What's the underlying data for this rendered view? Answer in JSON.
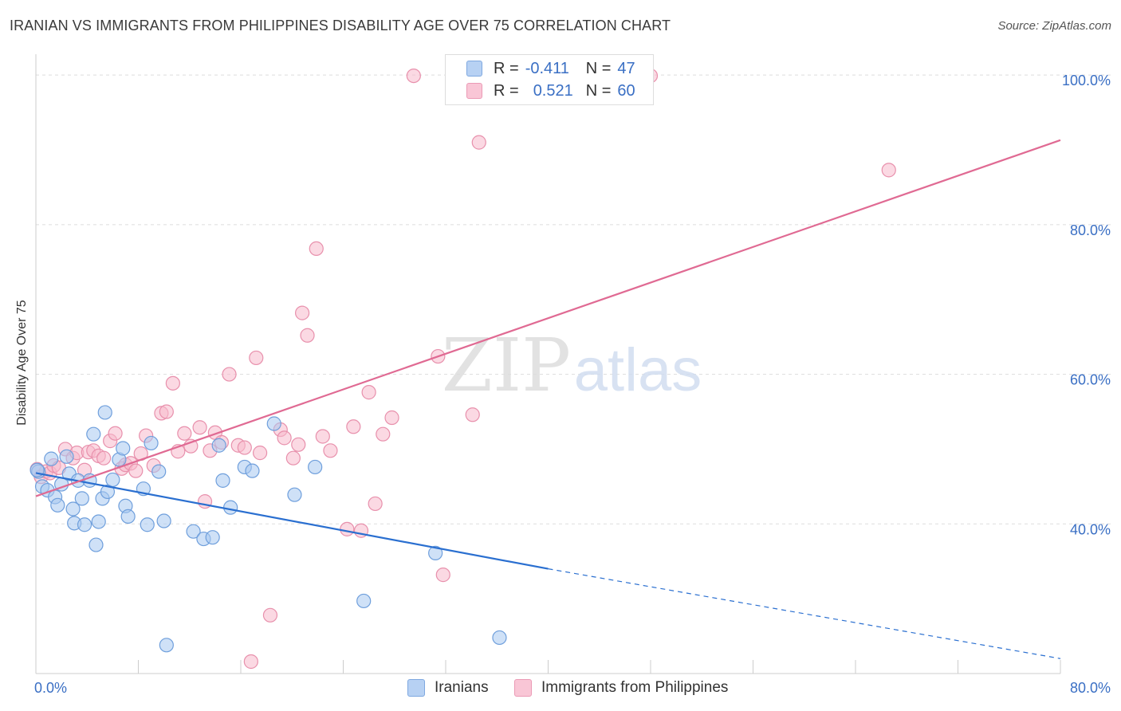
{
  "title": "IRANIAN VS IMMIGRANTS FROM PHILIPPINES DISABILITY AGE OVER 75 CORRELATION CHART",
  "source": "Source: ZipAtlas.com",
  "watermark": {
    "zip": "ZIP",
    "atlas": "atlas"
  },
  "legend": {
    "r_label": "R =",
    "n_label": "N =",
    "series": [
      {
        "r": "-0.411",
        "n": "47"
      },
      {
        "r": "0.521",
        "n": "60"
      }
    ]
  },
  "bottom_legend": [
    "Iranians",
    "Immigrants from Philippines"
  ],
  "colors": {
    "blue_fill": "#a8c8f0",
    "blue_stroke": "#6f9fdc",
    "blue_line": "#2a6fd0",
    "pink_fill": "#f7b9cc",
    "pink_stroke": "#e890ac",
    "pink_line": "#e06a93",
    "tick_text": "#3a6fc4",
    "grid": "#dddddd"
  },
  "chart_data": {
    "type": "scatter",
    "title": "IRANIAN VS IMMIGRANTS FROM PHILIPPINES DISABILITY AGE OVER 75 CORRELATION CHART",
    "xlabel": "",
    "ylabel": "Disability Age Over 75",
    "xlim": [
      0,
      80
    ],
    "ylim": [
      20,
      103
    ],
    "x_tick_labels": [
      "0.0%",
      "80.0%"
    ],
    "y_ticks": [
      40,
      60,
      80,
      100
    ],
    "y_tick_labels": [
      "40.0%",
      "60.0%",
      "80.0%",
      "100.0%"
    ],
    "grid": true,
    "legend_position": "top-center",
    "series": [
      {
        "name": "Iranians",
        "r": -0.411,
        "n": 47,
        "trend": {
          "x": [
            0,
            40
          ],
          "y": [
            46.8,
            34.0
          ],
          "dashed_to": [
            80,
            22.0
          ]
        },
        "points": [
          [
            0.2,
            47.0
          ],
          [
            0.5,
            45.0
          ],
          [
            0.9,
            44.5
          ],
          [
            1.2,
            48.7
          ],
          [
            1.5,
            43.6
          ],
          [
            1.7,
            42.5
          ],
          [
            2.0,
            45.3
          ],
          [
            2.4,
            49.0
          ],
          [
            2.6,
            46.7
          ],
          [
            2.9,
            42.0
          ],
          [
            3.0,
            40.1
          ],
          [
            3.3,
            45.8
          ],
          [
            3.6,
            43.4
          ],
          [
            3.8,
            39.9
          ],
          [
            4.2,
            45.8
          ],
          [
            4.5,
            52.0
          ],
          [
            4.7,
            37.2
          ],
          [
            4.9,
            40.3
          ],
          [
            5.2,
            43.4
          ],
          [
            5.4,
            54.9
          ],
          [
            5.6,
            44.3
          ],
          [
            6.0,
            45.9
          ],
          [
            6.5,
            48.6
          ],
          [
            6.8,
            50.1
          ],
          [
            7.0,
            42.4
          ],
          [
            7.2,
            41.0
          ],
          [
            8.4,
            44.7
          ],
          [
            8.7,
            39.9
          ],
          [
            9.0,
            50.8
          ],
          [
            9.6,
            47.0
          ],
          [
            10.0,
            40.4
          ],
          [
            10.2,
            23.8
          ],
          [
            12.3,
            39.0
          ],
          [
            13.1,
            38.0
          ],
          [
            13.8,
            38.2
          ],
          [
            14.3,
            50.5
          ],
          [
            14.6,
            45.8
          ],
          [
            15.2,
            42.2
          ],
          [
            16.3,
            47.6
          ],
          [
            16.9,
            47.1
          ],
          [
            18.6,
            53.4
          ],
          [
            20.2,
            43.9
          ],
          [
            21.8,
            47.6
          ],
          [
            25.6,
            29.7
          ],
          [
            31.2,
            36.1
          ],
          [
            36.2,
            24.8
          ],
          [
            0.1,
            47.2
          ]
        ]
      },
      {
        "name": "Immigrants from Philippines",
        "r": 0.521,
        "n": 60,
        "trend": {
          "x": [
            0,
            80
          ],
          "y": [
            43.7,
            91.3
          ]
        },
        "points": [
          [
            0.1,
            47.3
          ],
          [
            0.4,
            46.3
          ],
          [
            0.8,
            47.0
          ],
          [
            1.1,
            46.8
          ],
          [
            1.4,
            47.8
          ],
          [
            1.8,
            47.5
          ],
          [
            2.3,
            50.0
          ],
          [
            2.9,
            48.8
          ],
          [
            3.2,
            49.5
          ],
          [
            3.8,
            47.2
          ],
          [
            4.1,
            49.6
          ],
          [
            4.5,
            49.8
          ],
          [
            4.9,
            49.1
          ],
          [
            5.3,
            48.8
          ],
          [
            5.8,
            51.1
          ],
          [
            6.2,
            52.1
          ],
          [
            6.7,
            47.4
          ],
          [
            7.0,
            47.9
          ],
          [
            7.4,
            48.1
          ],
          [
            7.8,
            47.1
          ],
          [
            8.2,
            49.4
          ],
          [
            8.6,
            51.8
          ],
          [
            9.2,
            47.8
          ],
          [
            9.8,
            54.8
          ],
          [
            10.2,
            55.0
          ],
          [
            10.7,
            58.8
          ],
          [
            11.1,
            49.7
          ],
          [
            11.6,
            52.1
          ],
          [
            12.1,
            50.4
          ],
          [
            12.8,
            52.9
          ],
          [
            13.2,
            43.0
          ],
          [
            13.6,
            49.8
          ],
          [
            14.0,
            52.2
          ],
          [
            14.5,
            50.9
          ],
          [
            15.1,
            60.0
          ],
          [
            15.8,
            50.5
          ],
          [
            16.3,
            50.2
          ],
          [
            16.8,
            21.6
          ],
          [
            17.2,
            62.2
          ],
          [
            17.5,
            49.5
          ],
          [
            18.3,
            27.8
          ],
          [
            19.1,
            52.6
          ],
          [
            19.4,
            51.5
          ],
          [
            20.1,
            48.8
          ],
          [
            20.5,
            50.6
          ],
          [
            20.8,
            68.2
          ],
          [
            21.2,
            65.2
          ],
          [
            21.9,
            76.8
          ],
          [
            22.4,
            51.7
          ],
          [
            23.0,
            49.8
          ],
          [
            24.3,
            39.3
          ],
          [
            24.8,
            53.0
          ],
          [
            25.4,
            39.1
          ],
          [
            26.0,
            57.6
          ],
          [
            26.5,
            42.7
          ],
          [
            27.1,
            52.0
          ],
          [
            27.8,
            54.2
          ],
          [
            29.5,
            99.9
          ],
          [
            31.4,
            62.4
          ],
          [
            31.8,
            33.2
          ]
        ],
        "points_extra": [
          [
            34.1,
            54.6
          ],
          [
            34.6,
            91.0
          ],
          [
            48.0,
            99.9
          ],
          [
            66.6,
            87.3
          ]
        ]
      }
    ]
  }
}
